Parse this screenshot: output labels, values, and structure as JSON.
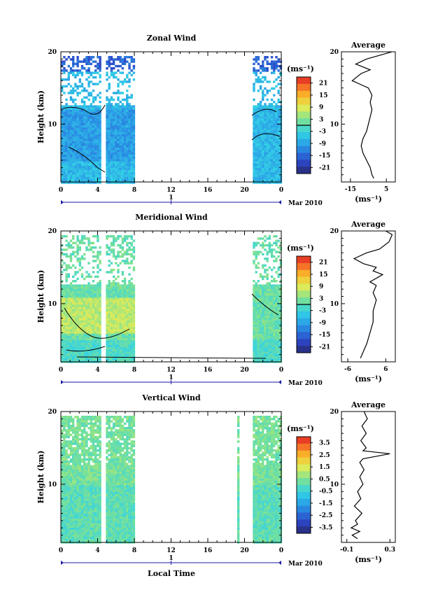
{
  "chart_data": [
    {
      "type": "heatmap",
      "title": "Zonal Wind",
      "ylabel": "Height (km)",
      "ylim": [
        2,
        20
      ],
      "yticks": [
        "20",
        "10"
      ],
      "xticks": [
        "0",
        "4",
        "8",
        "12",
        "16",
        "20",
        "0"
      ],
      "day_label": "1",
      "date_label": "Mar 2010",
      "colorbar": {
        "unit": "(ms⁻¹)",
        "labels": [
          "21",
          "15",
          "9",
          "3",
          "-3",
          "-9",
          "-15",
          "-21"
        ]
      },
      "profile": {
        "title": "Average",
        "xlabel": "(ms⁻¹)",
        "xticks": [
          "-15",
          "5"
        ],
        "yticks": [
          "20",
          "10"
        ],
        "xlim": [
          -20,
          10
        ],
        "points": [
          [
            -2,
            2.5
          ],
          [
            -3,
            3
          ],
          [
            -4,
            4
          ],
          [
            -6,
            5
          ],
          [
            -8,
            6
          ],
          [
            -9,
            7
          ],
          [
            -8,
            8
          ],
          [
            -6,
            9
          ],
          [
            -5,
            10
          ],
          [
            -4,
            11
          ],
          [
            -3,
            12
          ],
          [
            -4,
            13
          ],
          [
            -3,
            14
          ],
          [
            -5,
            15
          ],
          [
            -14,
            16
          ],
          [
            -9,
            17
          ],
          [
            -4,
            17.5
          ],
          [
            -12,
            18.3
          ],
          [
            -6,
            19
          ],
          [
            4,
            19.7
          ],
          [
            8,
            20
          ]
        ]
      }
    },
    {
      "type": "heatmap",
      "title": "Meridional Wind",
      "ylabel": "Height (km)",
      "ylim": [
        2,
        20
      ],
      "yticks": [
        "20",
        "10"
      ],
      "xticks": [
        "0",
        "4",
        "8",
        "12",
        "16",
        "20",
        "0"
      ],
      "day_label": "1",
      "date_label": "Mar 2010",
      "colorbar": {
        "unit": "(ms⁻¹)",
        "labels": [
          "21",
          "15",
          "9",
          "3",
          "-3",
          "-9",
          "-15",
          "-21"
        ]
      },
      "profile": {
        "title": "Average",
        "xlabel": "(ms⁻¹)",
        "xticks": [
          "-6",
          "6"
        ],
        "yticks": [
          "20",
          "10"
        ],
        "xlim": [
          -8,
          9
        ],
        "points": [
          [
            -2,
            2.5
          ],
          [
            -1,
            3.5
          ],
          [
            0,
            4.5
          ],
          [
            1,
            6
          ],
          [
            2,
            7.5
          ],
          [
            2,
            9
          ],
          [
            3,
            10.5
          ],
          [
            2,
            11.5
          ],
          [
            3,
            12.5
          ],
          [
            1,
            13
          ],
          [
            5,
            14
          ],
          [
            2,
            14.5
          ],
          [
            3,
            15
          ],
          [
            -1,
            15.5
          ],
          [
            -4,
            16.2
          ],
          [
            0,
            17
          ],
          [
            4,
            17.5
          ],
          [
            7,
            18.5
          ],
          [
            8,
            19.5
          ],
          [
            6,
            20
          ]
        ]
      }
    },
    {
      "type": "heatmap",
      "title": "Vertical Wind",
      "ylabel": "Height (km)",
      "xlabel": "Local Time",
      "ylim": [
        2,
        20
      ],
      "yticks": [
        "20",
        "10"
      ],
      "xticks": [
        "0",
        "4",
        "8",
        "12",
        "16",
        "20",
        "0"
      ],
      "day_label": "1",
      "date_label": "Mar 2010",
      "colorbar": {
        "unit": "(ms⁻¹)",
        "labels": [
          "3.5",
          "2.5",
          "1.5",
          "0.5",
          "-0.5",
          "-1.5",
          "-2.5",
          "-3.5"
        ]
      },
      "profile": {
        "title": "Average",
        "xlabel": "(ms⁻¹)",
        "xticks": [
          "-0.1",
          "0.3"
        ],
        "yticks": [
          "20",
          "10"
        ],
        "xlim": [
          -0.15,
          0.35
        ],
        "points": [
          [
            0.0,
            2.5
          ],
          [
            -0.05,
            3
          ],
          [
            0.02,
            3.5
          ],
          [
            -0.06,
            4
          ],
          [
            0.0,
            4.5
          ],
          [
            -0.02,
            5
          ],
          [
            0.04,
            6
          ],
          [
            -0.03,
            7
          ],
          [
            0.03,
            8
          ],
          [
            0.0,
            9
          ],
          [
            0.05,
            10
          ],
          [
            0.02,
            11
          ],
          [
            0.06,
            12
          ],
          [
            0.02,
            13
          ],
          [
            0.05,
            13.5
          ],
          [
            0.3,
            14.2
          ],
          [
            0.05,
            14.6
          ],
          [
            0.08,
            15
          ],
          [
            0.03,
            16
          ],
          [
            0.08,
            17
          ],
          [
            0.04,
            18
          ],
          [
            0.09,
            19
          ],
          [
            0.06,
            20
          ]
        ]
      }
    }
  ]
}
